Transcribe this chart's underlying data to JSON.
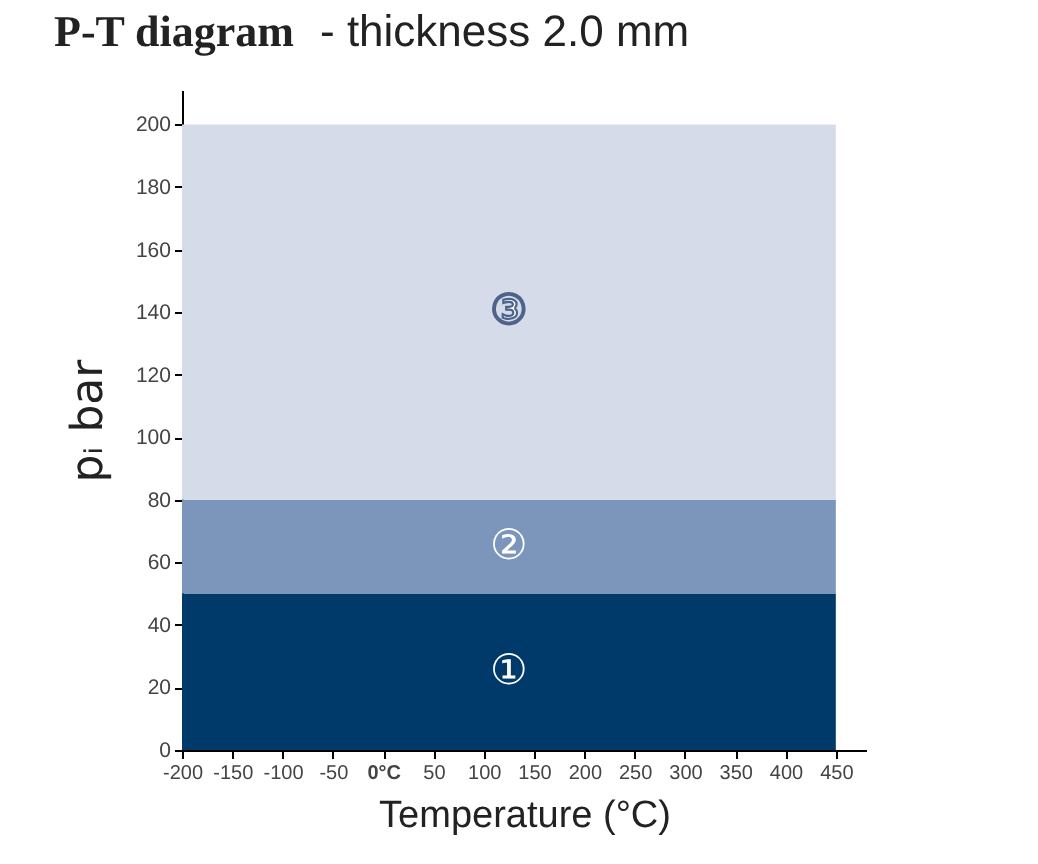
{
  "chart_data": {
    "type": "area",
    "title": "P-T diagram",
    "subtitle": "- thickness 2.0 mm",
    "xlabel": "Temperature (°C)",
    "ylabel": "pᵢ bar",
    "x": [
      -200,
      450
    ],
    "stacked": true,
    "legend": false,
    "grid": false,
    "series": [
      {
        "name": "①",
        "color": "#003a6b",
        "values": [
          50,
          50
        ]
      },
      {
        "name": "②",
        "color": "#7b96ba",
        "values": [
          30,
          30
        ]
      },
      {
        "name": "③",
        "color": "#d5dbe8",
        "values": [
          120,
          120
        ]
      }
    ],
    "xlim": [
      -200,
      480
    ],
    "xticks": [
      -200,
      -150,
      -100,
      -50,
      {
        "value": 0,
        "label": "0°C"
      },
      50,
      100,
      150,
      200,
      250,
      300,
      350,
      400,
      450
    ],
    "ylim": [
      0,
      211
    ],
    "yticks": [
      0,
      20,
      40,
      60,
      80,
      100,
      120,
      140,
      160,
      180,
      200
    ]
  }
}
